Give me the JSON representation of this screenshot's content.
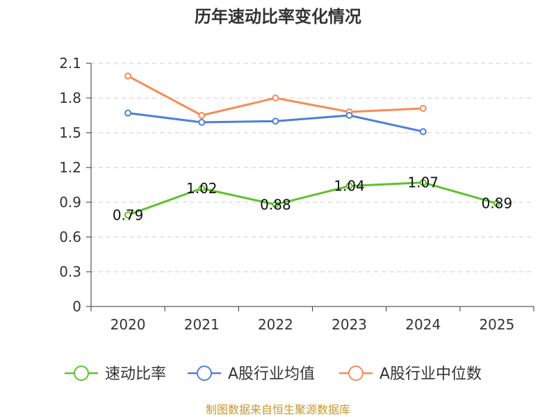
{
  "chart_data": {
    "type": "line",
    "title": "历年速动比率变化情况",
    "categories": [
      "2020",
      "2021",
      "2022",
      "2023",
      "2024",
      "2025"
    ],
    "y_ticks": [
      "0",
      "0.3",
      "0.6",
      "0.9",
      "1.2",
      "1.5",
      "1.8",
      "2.1"
    ],
    "ylim": [
      0,
      2.1
    ],
    "grid": true,
    "legend_position": "bottom",
    "series": [
      {
        "name": "速动比率",
        "color": "#5fc12b",
        "values": [
          0.79,
          1.02,
          0.88,
          1.04,
          1.07,
          0.89
        ],
        "labels": [
          "0.79",
          "1.02",
          "0.88",
          "1.04",
          "1.07",
          "0.89"
        ]
      },
      {
        "name": "A股行业均值",
        "color": "#4f7fd9",
        "values": [
          1.67,
          1.59,
          1.6,
          1.65,
          1.51,
          null
        ]
      },
      {
        "name": "A股行业中位数",
        "color": "#f78b57",
        "values": [
          1.99,
          1.65,
          1.8,
          1.68,
          1.71,
          null
        ]
      }
    ]
  },
  "source": "制图数据来自恒生聚源数据库"
}
